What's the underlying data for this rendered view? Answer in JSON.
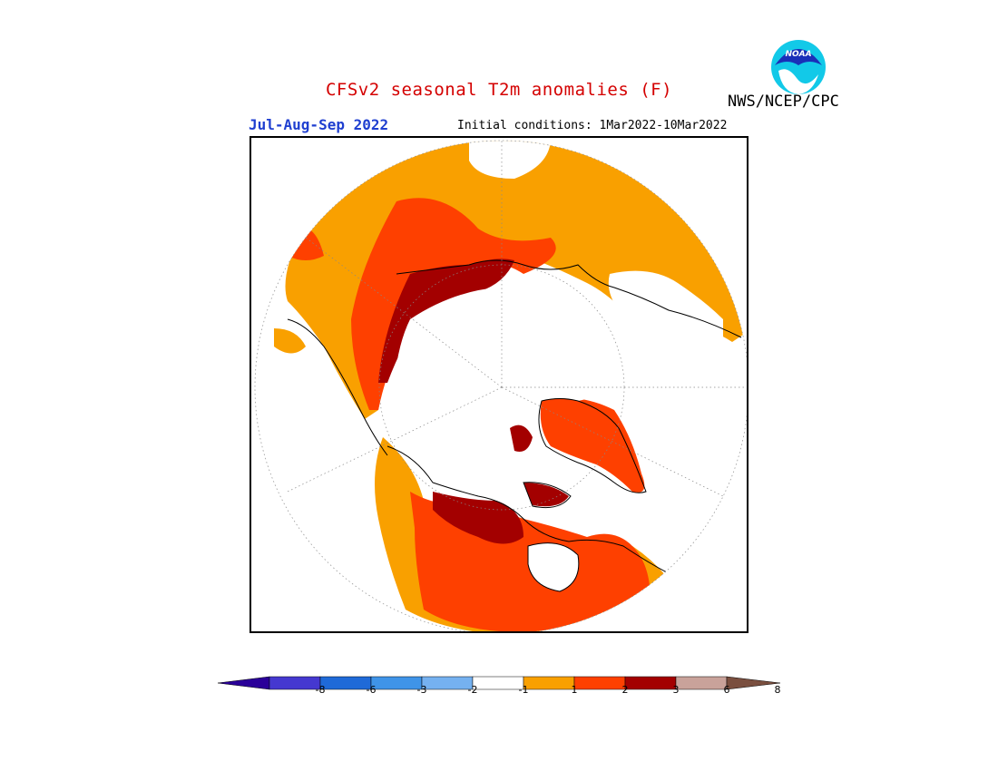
{
  "header": {
    "title": "CFSv2 seasonal T2m anomalies (F)",
    "agency": "NWS/NCEP/CPC",
    "period": "Jul-Aug-Sep 2022",
    "initial_conditions": "Initial conditions: 1Mar2022-10Mar2022",
    "logo_text": "NOAA"
  },
  "colors": {
    "title": "#d40000",
    "period": "#1f3fd0",
    "plus_1_2": "#f9a000",
    "plus_2_3": "#fe4000",
    "plus_3_6": "#a30000",
    "plus_6_8": "#c9a29a",
    "above_8": "#7a4f3f",
    "minus_1_2": "#75b1f0",
    "minus_2_3": "#3f94e8",
    "minus_3_6": "#1f6ad8",
    "minus_6_8": "#4538d0",
    "below_8": "#2a0099",
    "neutral": "#ffffff"
  },
  "colorbar": {
    "labels": [
      "-8",
      "-6",
      "-3",
      "-2",
      "-1",
      "1",
      "2",
      "3",
      "6",
      "8"
    ],
    "bins": [
      {
        "range": "< -8",
        "color": "#2a0099"
      },
      {
        "range": "-8 to -6",
        "color": "#4538d0"
      },
      {
        "range": "-6 to -3",
        "color": "#1f6ad8"
      },
      {
        "range": "-3 to -2",
        "color": "#3f94e8"
      },
      {
        "range": "-2 to -1",
        "color": "#75b1f0"
      },
      {
        "range": "-1 to 1",
        "color": "#ffffff"
      },
      {
        "range": "1 to 2",
        "color": "#f9a000"
      },
      {
        "range": "2 to 3",
        "color": "#fe4000"
      },
      {
        "range": "3 to 6",
        "color": "#a30000"
      },
      {
        "range": "6 to 8",
        "color": "#c9a29a"
      },
      {
        "range": "> 8",
        "color": "#7a4f3f"
      }
    ]
  },
  "map": {
    "projection": "north polar stereographic",
    "variable": "2m temperature anomaly"
  }
}
